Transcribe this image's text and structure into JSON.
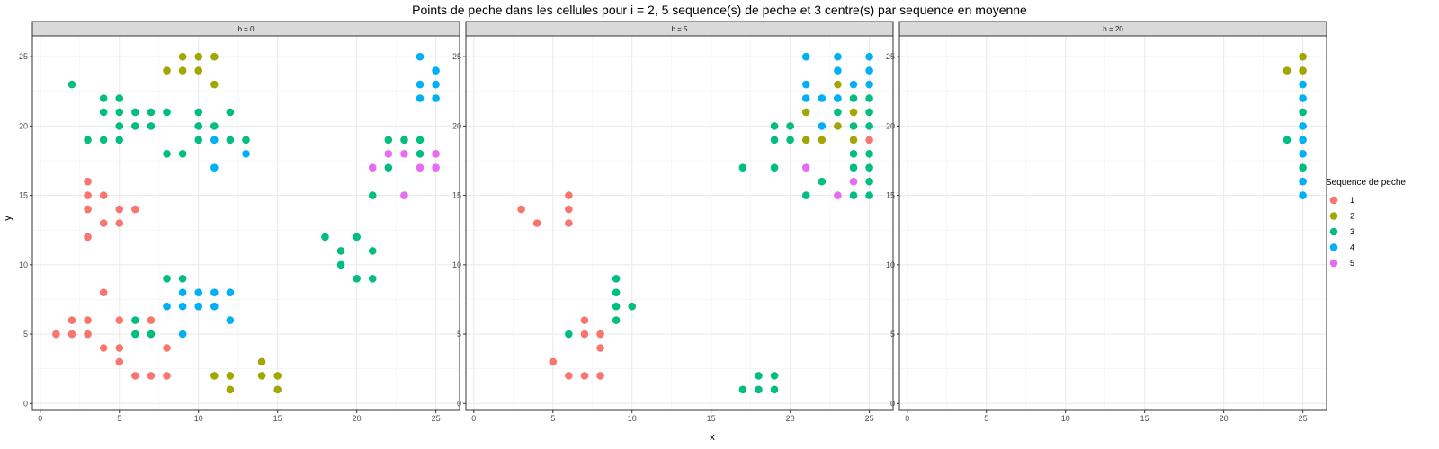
{
  "chart_data": {
    "type": "scatter",
    "title": "Points de peche dans les cellules pour i = 2, 5 sequence(s) de peche et 3 centre(s) par sequence en moyenne",
    "xlabel": "x",
    "ylabel": "y",
    "xlim": [
      -0.5,
      26.5
    ],
    "ylim": [
      -0.5,
      26.5
    ],
    "xticks": [
      0,
      5,
      10,
      15,
      20,
      25
    ],
    "yticks": [
      0,
      5,
      10,
      15,
      20,
      25
    ],
    "grid": true,
    "legend": {
      "title": "Sequence de peche",
      "placement": "right",
      "entries": [
        {
          "label": "1",
          "color": "#F8766D"
        },
        {
          "label": "2",
          "color": "#A3A500"
        },
        {
          "label": "3",
          "color": "#00BF7D"
        },
        {
          "label": "4",
          "color": "#00B0F6"
        },
        {
          "label": "5",
          "color": "#E76BF3"
        }
      ]
    },
    "panels": [
      {
        "label": "b = 0",
        "series": [
          {
            "name": "1",
            "points": [
              [
                1,
                5
              ],
              [
                2,
                5
              ],
              [
                2,
                6
              ],
              [
                3,
                5
              ],
              [
                3,
                6
              ],
              [
                3,
                12
              ],
              [
                3,
                14
              ],
              [
                3,
                15
              ],
              [
                3,
                16
              ],
              [
                4,
                4
              ],
              [
                4,
                8
              ],
              [
                4,
                13
              ],
              [
                4,
                15
              ],
              [
                5,
                3
              ],
              [
                5,
                4
              ],
              [
                5,
                6
              ],
              [
                5,
                13
              ],
              [
                5,
                14
              ],
              [
                6,
                2
              ],
              [
                6,
                14
              ],
              [
                7,
                2
              ],
              [
                7,
                5
              ],
              [
                7,
                6
              ],
              [
                8,
                2
              ],
              [
                8,
                4
              ]
            ]
          },
          {
            "name": "2",
            "points": [
              [
                8,
                24
              ],
              [
                9,
                24
              ],
              [
                9,
                25
              ],
              [
                10,
                24
              ],
              [
                10,
                25
              ],
              [
                11,
                23
              ],
              [
                11,
                25
              ],
              [
                11,
                2
              ],
              [
                12,
                1
              ],
              [
                12,
                2
              ],
              [
                14,
                2
              ],
              [
                14,
                3
              ],
              [
                15,
                1
              ],
              [
                15,
                2
              ]
            ]
          },
          {
            "name": "3",
            "points": [
              [
                2,
                23
              ],
              [
                3,
                19
              ],
              [
                4,
                19
              ],
              [
                4,
                21
              ],
              [
                4,
                22
              ],
              [
                5,
                19
              ],
              [
                5,
                20
              ],
              [
                5,
                21
              ],
              [
                5,
                22
              ],
              [
                6,
                20
              ],
              [
                6,
                21
              ],
              [
                7,
                20
              ],
              [
                7,
                21
              ],
              [
                8,
                18
              ],
              [
                8,
                21
              ],
              [
                9,
                18
              ],
              [
                10,
                19
              ],
              [
                10,
                20
              ],
              [
                10,
                21
              ],
              [
                11,
                20
              ],
              [
                12,
                19
              ],
              [
                12,
                21
              ],
              [
                13,
                19
              ],
              [
                6,
                5
              ],
              [
                6,
                6
              ],
              [
                7,
                5
              ],
              [
                8,
                9
              ],
              [
                9,
                9
              ],
              [
                18,
                12
              ],
              [
                19,
                10
              ],
              [
                19,
                11
              ],
              [
                20,
                9
              ],
              [
                20,
                12
              ],
              [
                21,
                9
              ],
              [
                21,
                11
              ],
              [
                21,
                15
              ],
              [
                22,
                17
              ],
              [
                22,
                19
              ],
              [
                23,
                19
              ],
              [
                24,
                18
              ],
              [
                24,
                19
              ]
            ]
          },
          {
            "name": "4",
            "points": [
              [
                11,
                17
              ],
              [
                11,
                19
              ],
              [
                13,
                18
              ],
              [
                8,
                7
              ],
              [
                9,
                5
              ],
              [
                9,
                7
              ],
              [
                9,
                8
              ],
              [
                10,
                7
              ],
              [
                10,
                8
              ],
              [
                11,
                7
              ],
              [
                11,
                8
              ],
              [
                12,
                6
              ],
              [
                12,
                8
              ],
              [
                24,
                22
              ],
              [
                24,
                23
              ],
              [
                24,
                25
              ],
              [
                25,
                22
              ],
              [
                25,
                23
              ],
              [
                25,
                24
              ]
            ]
          },
          {
            "name": "5",
            "points": [
              [
                21,
                17
              ],
              [
                22,
                18
              ],
              [
                23,
                15
              ],
              [
                23,
                18
              ],
              [
                24,
                17
              ],
              [
                25,
                17
              ],
              [
                25,
                18
              ]
            ]
          }
        ]
      },
      {
        "label": "b = 5",
        "series": [
          {
            "name": "1",
            "points": [
              [
                3,
                14
              ],
              [
                4,
                13
              ],
              [
                6,
                13
              ],
              [
                6,
                14
              ],
              [
                6,
                15
              ],
              [
                5,
                3
              ],
              [
                6,
                2
              ],
              [
                7,
                2
              ],
              [
                7,
                5
              ],
              [
                7,
                6
              ],
              [
                8,
                2
              ],
              [
                8,
                4
              ],
              [
                8,
                5
              ],
              [
                25,
                19
              ]
            ]
          },
          {
            "name": "2",
            "points": [
              [
                21,
                19
              ],
              [
                21,
                21
              ],
              [
                22,
                19
              ],
              [
                23,
                20
              ],
              [
                23,
                23
              ],
              [
                24,
                19
              ],
              [
                24,
                21
              ]
            ]
          },
          {
            "name": "3",
            "points": [
              [
                6,
                5
              ],
              [
                9,
                6
              ],
              [
                9,
                7
              ],
              [
                9,
                8
              ],
              [
                9,
                9
              ],
              [
                10,
                7
              ],
              [
                17,
                1
              ],
              [
                18,
                1
              ],
              [
                18,
                2
              ],
              [
                19,
                1
              ],
              [
                19,
                2
              ],
              [
                17,
                17
              ],
              [
                19,
                17
              ],
              [
                19,
                19
              ],
              [
                19,
                20
              ],
              [
                20,
                19
              ],
              [
                20,
                20
              ],
              [
                21,
                15
              ],
              [
                22,
                16
              ],
              [
                23,
                21
              ],
              [
                23,
                22
              ],
              [
                24,
                15
              ],
              [
                24,
                17
              ],
              [
                24,
                18
              ],
              [
                24,
                20
              ],
              [
                24,
                22
              ],
              [
                25,
                15
              ],
              [
                25,
                16
              ],
              [
                25,
                17
              ],
              [
                25,
                18
              ],
              [
                25,
                20
              ],
              [
                25,
                21
              ],
              [
                25,
                22
              ]
            ]
          },
          {
            "name": "4",
            "points": [
              [
                21,
                22
              ],
              [
                21,
                23
              ],
              [
                21,
                25
              ],
              [
                22,
                20
              ],
              [
                22,
                22
              ],
              [
                23,
                22
              ],
              [
                23,
                24
              ],
              [
                23,
                25
              ],
              [
                24,
                23
              ],
              [
                25,
                23
              ],
              [
                25,
                24
              ],
              [
                25,
                25
              ]
            ]
          },
          {
            "name": "5",
            "points": [
              [
                21,
                17
              ],
              [
                23,
                15
              ],
              [
                24,
                16
              ]
            ]
          }
        ]
      },
      {
        "label": "b = 20",
        "series": [
          {
            "name": "2",
            "points": [
              [
                24,
                24
              ],
              [
                25,
                24
              ],
              [
                25,
                25
              ]
            ]
          },
          {
            "name": "3",
            "points": [
              [
                24,
                19
              ],
              [
                25,
                17
              ],
              [
                25,
                21
              ]
            ]
          },
          {
            "name": "4",
            "points": [
              [
                25,
                15
              ],
              [
                25,
                16
              ],
              [
                25,
                18
              ],
              [
                25,
                19
              ],
              [
                25,
                20
              ],
              [
                25,
                22
              ],
              [
                25,
                23
              ]
            ]
          }
        ]
      }
    ]
  }
}
